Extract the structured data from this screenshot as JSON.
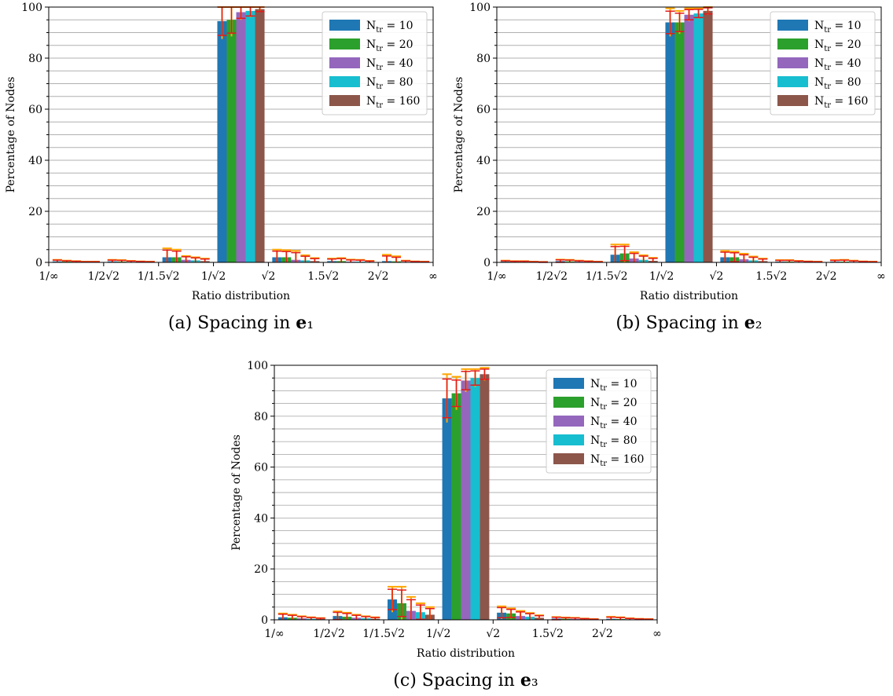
{
  "chart_data": [
    {
      "type": "bar",
      "caption": "(a) Spacing in e₁",
      "xlabel": "Ratio distribution",
      "ylabel": "Percentage of Nodes",
      "ylim": [
        0,
        100
      ],
      "yticks": [
        0,
        20,
        40,
        60,
        80,
        100
      ],
      "grid": true,
      "legend_position": "top-right",
      "xtick_labels": [
        "1/∞",
        "1/2√2",
        "1/1.5√2",
        "1/√2",
        "√2",
        "1.5√2",
        "2√2",
        "∞"
      ],
      "categories": [
        "1/∞ – 1/2√2",
        "1/2√2 – 1/1.5√2",
        "1/1.5√2 – 1/√2",
        "1/√2 – √2",
        "√2 – 1.5√2",
        "1.5√2 – 2√2",
        "2√2 – ∞"
      ],
      "series": [
        {
          "name": "N_tr = 10",
          "color": "#1f77b4",
          "values": [
            0.4,
            0.4,
            2.0,
            94.5,
            2.0,
            0.5,
            0.5
          ],
          "errors": [
            0.6,
            0.6,
            3.5,
            7.0,
            3.0,
            1.0,
            2.5
          ]
        },
        {
          "name": "N_tr = 20",
          "color": "#2ca02c",
          "values": [
            0.3,
            0.3,
            2.0,
            95.0,
            2.0,
            0.5,
            0.4
          ],
          "errors": [
            0.4,
            0.6,
            3.0,
            6.5,
            2.8,
            1.2,
            2.0
          ]
        },
        {
          "name": "N_tr = 40",
          "color": "#9467bd",
          "values": [
            0.2,
            0.2,
            1.0,
            98.0,
            1.0,
            0.3,
            0.2
          ],
          "errors": [
            0.3,
            0.4,
            1.5,
            3.0,
            3.5,
            0.8,
            0.5
          ]
        },
        {
          "name": "N_tr = 80",
          "color": "#17becf",
          "values": [
            0.1,
            0.1,
            0.8,
            98.5,
            0.8,
            0.3,
            0.1
          ],
          "errors": [
            0.2,
            0.3,
            1.2,
            2.5,
            2.0,
            0.7,
            0.3
          ]
        },
        {
          "name": "N_tr = 160",
          "color": "#8c564b",
          "values": [
            0.1,
            0.1,
            0.5,
            99.2,
            0.5,
            0.2,
            0.1
          ],
          "errors": [
            0.2,
            0.2,
            1.0,
            1.2,
            1.2,
            0.4,
            0.2
          ]
        }
      ]
    },
    {
      "type": "bar",
      "caption": "(b) Spacing in e₂",
      "xlabel": "Ratio distribution",
      "ylabel": "Percentage of Nodes",
      "ylim": [
        0,
        100
      ],
      "yticks": [
        0,
        20,
        40,
        60,
        80,
        100
      ],
      "grid": true,
      "legend_position": "top-right",
      "xtick_labels": [
        "1/∞",
        "1/2√2",
        "1/1.5√2",
        "1/√2",
        "√2",
        "1.5√2",
        "2√2",
        "∞"
      ],
      "categories": [
        "1/∞ – 1/2√2",
        "1/2√2 – 1/1.5√2",
        "1/1.5√2 – 1/√2",
        "1/√2 – √2",
        "√2 – 1.5√2",
        "1.5√2 – 2√2",
        "2√2 – ∞"
      ],
      "series": [
        {
          "name": "N_tr = 10",
          "color": "#1f77b4",
          "values": [
            0.3,
            0.5,
            3.0,
            94.0,
            2.0,
            0.3,
            0.3
          ],
          "errors": [
            0.4,
            0.6,
            4.0,
            5.5,
            2.5,
            0.6,
            0.6
          ]
        },
        {
          "name": "N_tr = 20",
          "color": "#2ca02c",
          "values": [
            0.2,
            0.4,
            3.5,
            94.0,
            2.0,
            0.3,
            0.3
          ],
          "errors": [
            0.3,
            0.6,
            3.5,
            4.5,
            2.2,
            0.6,
            0.7
          ]
        },
        {
          "name": "N_tr = 40",
          "color": "#9467bd",
          "values": [
            0.2,
            0.3,
            1.5,
            97.0,
            1.2,
            0.2,
            0.2
          ],
          "errors": [
            0.3,
            0.4,
            2.5,
            2.5,
            2.2,
            0.4,
            0.5
          ]
        },
        {
          "name": "N_tr = 80",
          "color": "#17becf",
          "values": [
            0.1,
            0.2,
            1.0,
            97.5,
            0.8,
            0.1,
            0.1
          ],
          "errors": [
            0.2,
            0.3,
            1.8,
            2.0,
            1.5,
            0.3,
            0.3
          ]
        },
        {
          "name": "N_tr = 160",
          "color": "#8c564b",
          "values": [
            0.1,
            0.1,
            0.6,
            98.5,
            0.5,
            0.1,
            0.1
          ],
          "errors": [
            0.1,
            0.2,
            1.2,
            1.5,
            1.0,
            0.2,
            0.2
          ]
        }
      ]
    },
    {
      "type": "bar",
      "caption": "(c) Spacing in e₃",
      "xlabel": "Ratio distribution",
      "ylabel": "Percentage of Nodes",
      "ylim": [
        0,
        100
      ],
      "yticks": [
        0,
        20,
        40,
        60,
        80,
        100
      ],
      "grid": true,
      "legend_position": "top-right",
      "xtick_labels": [
        "1/∞",
        "1/2√2",
        "1/1.5√2",
        "1/√2",
        "√2",
        "1.5√2",
        "2√2",
        "∞"
      ],
      "categories": [
        "1/∞ – 1/2√2",
        "1/2√2 – 1/1.5√2",
        "1/1.5√2 – 1/√2",
        "1/√2 – √2",
        "√2 – 1.5√2",
        "1.5√2 – 2√2",
        "2√2 – ∞"
      ],
      "series": [
        {
          "name": "N_tr = 10",
          "color": "#1f77b4",
          "values": [
            1.0,
            1.5,
            8.0,
            87.0,
            2.8,
            0.5,
            0.4
          ],
          "errors": [
            1.5,
            1.8,
            5.0,
            9.5,
            2.5,
            0.6,
            0.8
          ]
        },
        {
          "name": "N_tr = 20",
          "color": "#2ca02c",
          "values": [
            0.8,
            1.2,
            6.5,
            89.0,
            2.5,
            0.4,
            0.3
          ],
          "errors": [
            1.2,
            1.6,
            6.5,
            6.5,
            2.0,
            0.5,
            0.7
          ]
        },
        {
          "name": "N_tr = 40",
          "color": "#9467bd",
          "values": [
            0.6,
            0.8,
            3.5,
            94.0,
            1.5,
            0.3,
            0.2
          ],
          "errors": [
            0.8,
            1.2,
            5.5,
            4.5,
            2.0,
            0.5,
            0.4
          ]
        },
        {
          "name": "N_tr = 80",
          "color": "#17becf",
          "values": [
            0.4,
            0.6,
            3.0,
            95.0,
            1.2,
            0.2,
            0.1
          ],
          "errors": [
            0.6,
            0.8,
            3.5,
            3.5,
            1.5,
            0.3,
            0.3
          ]
        },
        {
          "name": "N_tr = 160",
          "color": "#8c564b",
          "values": [
            0.3,
            0.4,
            2.0,
            96.5,
            0.8,
            0.1,
            0.1
          ],
          "errors": [
            0.4,
            0.6,
            3.0,
            2.5,
            1.0,
            0.2,
            0.2
          ]
        }
      ]
    }
  ]
}
